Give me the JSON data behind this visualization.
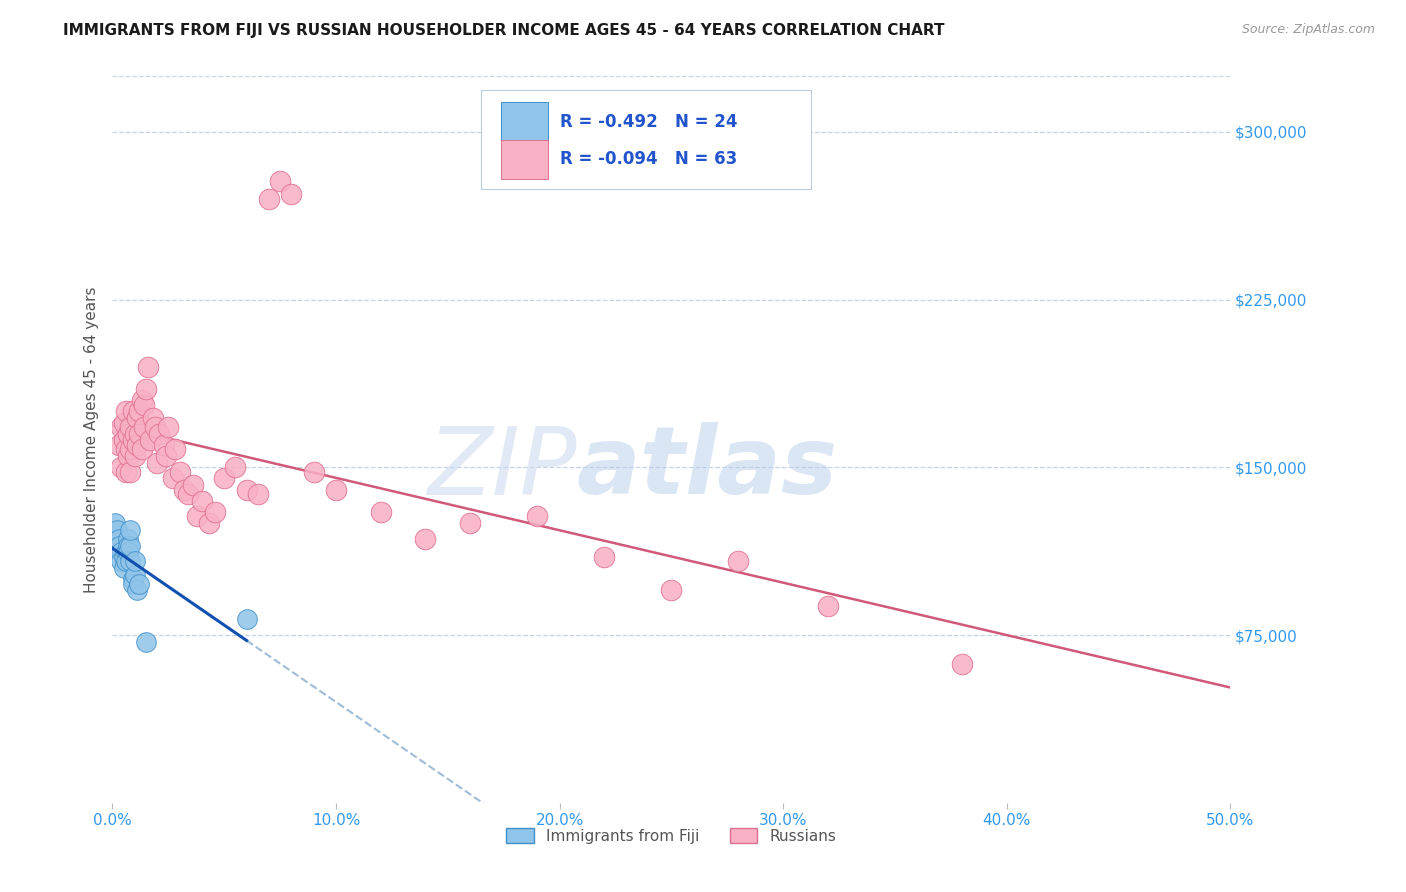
{
  "title": "IMMIGRANTS FROM FIJI VS RUSSIAN HOUSEHOLDER INCOME AGES 45 - 64 YEARS CORRELATION CHART",
  "source": "Source: ZipAtlas.com",
  "ylabel": "Householder Income Ages 45 - 64 years",
  "xlim": [
    0.0,
    0.5
  ],
  "ylim": [
    0,
    325000
  ],
  "yticks": [
    75000,
    150000,
    225000,
    300000
  ],
  "ytick_labels": [
    "$75,000",
    "$150,000",
    "$225,000",
    "$300,000"
  ],
  "xticks": [
    0.0,
    0.1,
    0.2,
    0.3,
    0.4,
    0.5
  ],
  "xtick_labels": [
    "0.0%",
    "10.0%",
    "20.0%",
    "30.0%",
    "40.0%",
    "50.0%"
  ],
  "fiji_color": "#90c4e8",
  "russian_color": "#f8b0c4",
  "fiji_edge_color": "#4090cc",
  "russian_edge_color": "#e07090",
  "fiji_label": "Immigrants from Fiji",
  "russian_label": "Russians",
  "fiji_R": -0.492,
  "fiji_N": 24,
  "russian_R": -0.094,
  "russian_N": 63,
  "fiji_trend_color": "#1050b0",
  "russian_trend_color": "#d05878",
  "fiji_trend_dashed_color": "#a0bcd8",
  "background_color": "#ffffff",
  "grid_color": "#c8d4e4",
  "title_fontsize": 11,
  "tick_label_color": "#3399ee",
  "ylabel_color": "#555555",
  "legend_text_color": "#2255cc",
  "legend_R_color": "#cc1133",
  "fiji_points_x": [
    0.001,
    0.002,
    0.003,
    0.003,
    0.004,
    0.004,
    0.005,
    0.005,
    0.006,
    0.006,
    0.007,
    0.007,
    0.007,
    0.008,
    0.008,
    0.008,
    0.009,
    0.009,
    0.01,
    0.01,
    0.011,
    0.012,
    0.015,
    0.06
  ],
  "fiji_points_y": [
    125000,
    122000,
    118000,
    115000,
    112000,
    108000,
    110000,
    105000,
    112000,
    108000,
    118000,
    115000,
    112000,
    108000,
    115000,
    122000,
    100000,
    98000,
    102000,
    108000,
    95000,
    98000,
    72000,
    82000
  ],
  "russian_points_x": [
    0.003,
    0.004,
    0.004,
    0.005,
    0.005,
    0.006,
    0.006,
    0.006,
    0.007,
    0.007,
    0.008,
    0.008,
    0.008,
    0.009,
    0.009,
    0.01,
    0.01,
    0.011,
    0.011,
    0.012,
    0.012,
    0.013,
    0.013,
    0.014,
    0.014,
    0.015,
    0.016,
    0.017,
    0.018,
    0.019,
    0.02,
    0.021,
    0.023,
    0.024,
    0.025,
    0.027,
    0.028,
    0.03,
    0.032,
    0.034,
    0.036,
    0.038,
    0.04,
    0.043,
    0.046,
    0.05,
    0.055,
    0.06,
    0.065,
    0.07,
    0.075,
    0.08,
    0.09,
    0.1,
    0.12,
    0.14,
    0.16,
    0.19,
    0.22,
    0.25,
    0.28,
    0.32,
    0.38
  ],
  "russian_points_y": [
    160000,
    150000,
    168000,
    170000,
    162000,
    175000,
    158000,
    148000,
    165000,
    155000,
    168000,
    158000,
    148000,
    175000,
    162000,
    165000,
    155000,
    172000,
    160000,
    175000,
    165000,
    180000,
    158000,
    178000,
    168000,
    185000,
    195000,
    162000,
    172000,
    168000,
    152000,
    165000,
    160000,
    155000,
    168000,
    145000,
    158000,
    148000,
    140000,
    138000,
    142000,
    128000,
    135000,
    125000,
    130000,
    145000,
    150000,
    140000,
    138000,
    270000,
    278000,
    272000,
    148000,
    140000,
    130000,
    118000,
    125000,
    128000,
    110000,
    95000,
    108000,
    88000,
    62000
  ]
}
